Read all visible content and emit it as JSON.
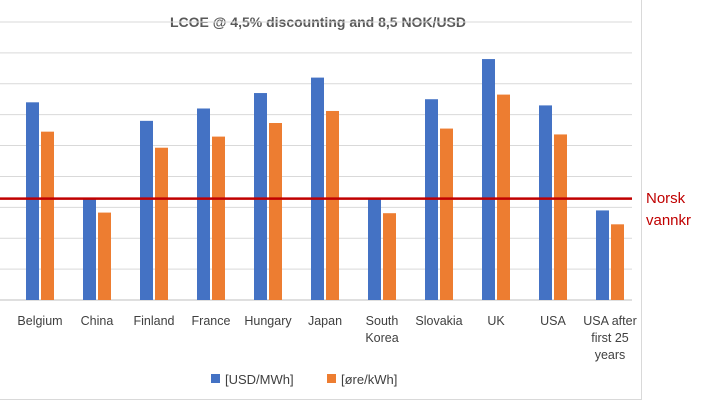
{
  "chart_data": {
    "type": "bar",
    "title": "LCOE @ 4,5% discounting and 8,5 NOK/USD",
    "categories": [
      [
        "Belgium"
      ],
      [
        "China"
      ],
      [
        "Finland"
      ],
      [
        "France"
      ],
      [
        "Hungary"
      ],
      [
        "Japan"
      ],
      [
        "South",
        "Korea"
      ],
      [
        "Slovakia"
      ],
      [
        "UK"
      ],
      [
        "USA"
      ],
      [
        "USA after",
        "first 25",
        "years"
      ]
    ],
    "series": [
      {
        "name": "[USD/MWh]",
        "values": [
          64,
          33,
          58,
          62,
          67,
          72,
          33,
          65,
          78,
          63,
          29
        ]
      },
      {
        "name": "[øre/kWh]",
        "values": [
          54.5,
          28.3,
          49.3,
          52.9,
          57.3,
          61.2,
          28.1,
          55.5,
          66.5,
          53.6,
          24.5
        ]
      }
    ],
    "ylim": [
      0,
      90
    ],
    "grid": true,
    "legend_position": "bottom",
    "colors": {
      "series1": "#4472c4",
      "series2": "#ed7d31",
      "reference_line": "#c00000",
      "grid": "#d9d9d9"
    },
    "reference_line": {
      "value": 32.8,
      "label_lines": [
        "Norsk",
        "vannkr"
      ]
    }
  }
}
